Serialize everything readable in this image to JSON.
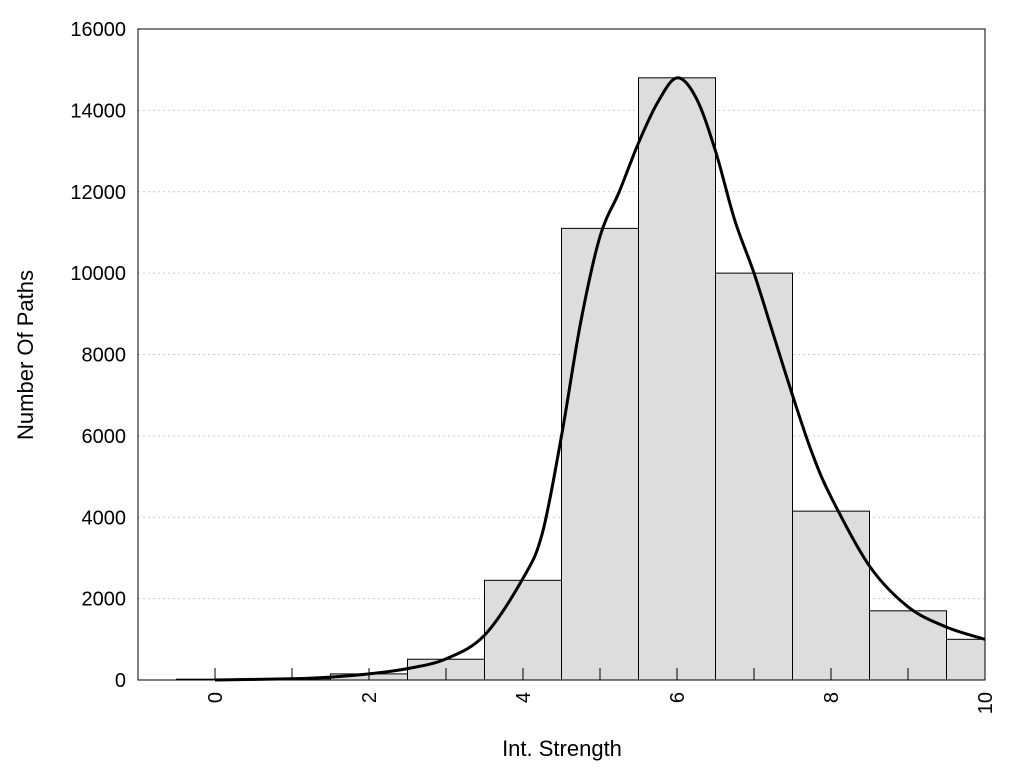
{
  "chart_data": {
    "type": "bar",
    "title": "",
    "xlabel": "Int. Strength",
    "ylabel": "Number Of Paths",
    "xlim": [
      -1,
      10
    ],
    "ylim": [
      0,
      16000
    ],
    "x_ticks": [
      "0",
      "2",
      "4",
      "6",
      "8",
      "10"
    ],
    "y_ticks": [
      "0",
      "2000",
      "4000",
      "6000",
      "8000",
      "10000",
      "12000",
      "14000",
      "16000"
    ],
    "grid": "horizontal dotted",
    "colors": {
      "bar_fill": "#dddddd",
      "bar_stroke": "#000000",
      "curve": "#000000",
      "grid": "#cccccc"
    },
    "bars": [
      {
        "x": 0,
        "value": 20
      },
      {
        "x": 1,
        "value": 30
      },
      {
        "x": 2,
        "value": 150
      },
      {
        "x": 3,
        "value": 510
      },
      {
        "x": 4,
        "value": 2450
      },
      {
        "x": 5,
        "value": 11100
      },
      {
        "x": 6,
        "value": 14800
      },
      {
        "x": 7,
        "value": 10000
      },
      {
        "x": 8,
        "value": 4150
      },
      {
        "x": 9,
        "value": 1700
      },
      {
        "x": 10,
        "value": 1000
      }
    ],
    "curve": {
      "x": [
        0,
        1,
        1.5,
        2,
        2.5,
        3,
        3.5,
        4,
        4.25,
        4.5,
        4.75,
        5,
        5.25,
        5.5,
        5.75,
        6,
        6.25,
        6.5,
        6.75,
        7,
        7.25,
        7.5,
        7.75,
        8,
        8.5,
        9,
        9.5,
        10
      ],
      "y": [
        0,
        30,
        70,
        150,
        280,
        520,
        1100,
        2500,
        3600,
        6000,
        8800,
        10900,
        12000,
        13200,
        14200,
        14800,
        14300,
        13000,
        11300,
        10000,
        8500,
        7000,
        5600,
        4500,
        2800,
        1800,
        1300,
        1000
      ]
    }
  }
}
